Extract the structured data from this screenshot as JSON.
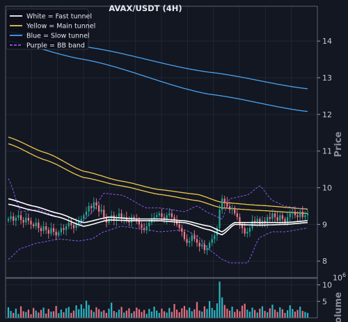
{
  "chart_data": {
    "type": "candlestick",
    "title": "AVAX/USDT (4H)",
    "price_panel": {
      "ylabel": "Price",
      "ylim": [
        7.55,
        14.95
      ],
      "yticks": [
        "8",
        "9",
        "10",
        "11",
        "12",
        "13",
        "14"
      ],
      "legend": [
        {
          "label": "White = Fast tunnel",
          "color": "#ffffff",
          "style": "solid"
        },
        {
          "label": "Yellow = Main tunnel",
          "color": "#f2c94c",
          "style": "solid"
        },
        {
          "label": "Blue = Slow tunnel",
          "color": "#4aa3f0",
          "style": "solid"
        },
        {
          "label": "Purple = BB band",
          "color": "#8a5cf0",
          "style": "dashed"
        }
      ],
      "legend_position": "top-left",
      "grid": true
    },
    "volume_panel": {
      "ylabel": "Volume",
      "exponent": "1e6",
      "ylim": [
        0,
        12
      ],
      "yticks": [
        "5",
        "10"
      ]
    },
    "num_candles": 120,
    "overlays": {
      "slow_tunnel_upper": {
        "x": [
          0,
          30,
          80,
          119
        ],
        "y": [
          14.25,
          13.85,
          13.15,
          12.7
        ]
      },
      "slow_tunnel_lower": {
        "x": [
          0,
          30,
          80,
          119
        ],
        "y": [
          14.0,
          13.5,
          12.55,
          12.08
        ]
      },
      "main_tunnel_upper": {
        "x": [
          0,
          15,
          30,
          45,
          60,
          75,
          85,
          100,
          119
        ],
        "y": [
          11.38,
          10.95,
          10.45,
          10.18,
          9.95,
          9.82,
          9.6,
          9.52,
          9.42
        ]
      },
      "main_tunnel_lower": {
        "x": [
          0,
          15,
          30,
          45,
          60,
          75,
          85,
          100,
          119
        ],
        "y": [
          11.2,
          10.75,
          10.28,
          10.05,
          9.82,
          9.65,
          9.45,
          9.38,
          9.3
        ]
      },
      "fast_tunnel_upper": {
        "x": [
          0,
          10,
          20,
          30,
          40,
          50,
          60,
          70,
          80,
          85,
          90,
          100,
          110,
          119
        ],
        "y": [
          9.7,
          9.5,
          9.3,
          9.05,
          9.2,
          9.15,
          9.15,
          9.1,
          8.95,
          8.8,
          9.05,
          9.05,
          9.05,
          9.1
        ]
      },
      "fast_tunnel_lower": {
        "x": [
          0,
          10,
          20,
          30,
          40,
          50,
          60,
          70,
          80,
          85,
          90,
          100,
          110,
          119
        ],
        "y": [
          9.55,
          9.38,
          9.2,
          8.95,
          9.12,
          9.1,
          9.1,
          9.05,
          8.85,
          8.72,
          9.0,
          8.98,
          9.0,
          9.05
        ]
      },
      "bb_upper": {
        "x": [
          0,
          5,
          12,
          20,
          28,
          33,
          38,
          45,
          55,
          60,
          70,
          75,
          80,
          85,
          88,
          95,
          100,
          105,
          110,
          119
        ],
        "y": [
          10.25,
          9.35,
          9.4,
          9.2,
          9.0,
          9.3,
          9.85,
          9.8,
          9.45,
          9.45,
          9.35,
          9.5,
          9.3,
          9.15,
          9.7,
          9.8,
          10.05,
          9.65,
          9.5,
          9.4
        ]
      },
      "bb_lower": {
        "x": [
          0,
          5,
          12,
          20,
          28,
          33,
          38,
          45,
          55,
          60,
          70,
          75,
          80,
          85,
          88,
          95,
          100,
          105,
          110,
          119
        ],
        "y": [
          8.05,
          8.35,
          8.5,
          8.6,
          8.55,
          8.6,
          8.8,
          8.95,
          8.85,
          8.8,
          8.85,
          8.7,
          8.3,
          8.05,
          7.95,
          7.95,
          8.65,
          8.8,
          8.8,
          8.9
        ]
      }
    },
    "candles": {
      "close": [
        9.15,
        9.22,
        9.1,
        9.18,
        9.25,
        9.12,
        9.05,
        9.18,
        9.1,
        9.0,
        8.95,
        9.05,
        8.9,
        8.82,
        8.95,
        8.85,
        8.75,
        8.9,
        8.8,
        8.7,
        8.78,
        8.9,
        8.85,
        8.95,
        9.05,
        8.98,
        8.9,
        9.02,
        9.1,
        9.15,
        9.25,
        9.35,
        9.5,
        9.45,
        9.6,
        9.52,
        9.35,
        9.4,
        9.2,
        9.05,
        9.15,
        9.25,
        9.1,
        9.2,
        9.3,
        9.15,
        9.2,
        9.1,
        9.05,
        9.2,
        9.15,
        9.1,
        9.0,
        8.9,
        8.85,
        8.95,
        9.05,
        9.15,
        9.2,
        9.25,
        9.3,
        9.2,
        9.15,
        9.25,
        9.3,
        9.2,
        9.1,
        9.0,
        8.9,
        8.8,
        8.6,
        8.5,
        8.55,
        8.7,
        8.6,
        8.5,
        8.4,
        8.45,
        8.3,
        8.35,
        8.5,
        8.6,
        8.7,
        8.9,
        9.4,
        9.7,
        9.6,
        9.5,
        9.4,
        9.45,
        9.3,
        9.2,
        9.0,
        8.9,
        8.75,
        8.8,
        8.9,
        9.1,
        9.05,
        9.15,
        9.0,
        9.1,
        9.05,
        9.2,
        9.15,
        9.3,
        9.2,
        9.1,
        9.25,
        9.15,
        9.05,
        9.2,
        9.3,
        9.35,
        9.25,
        9.2,
        9.35,
        9.2,
        9.25,
        9.3
      ],
      "volume": [
        3.2,
        2.1,
        1.5,
        2.8,
        1.2,
        3.5,
        2.0,
        1.8,
        2.5,
        1.1,
        3.0,
        2.2,
        1.6,
        2.4,
        3.1,
        1.3,
        2.7,
        1.9,
        2.0,
        3.6,
        1.4,
        2.5,
        1.7,
        2.9,
        3.3,
        1.5,
        2.2,
        3.8,
        2.6,
        4.1,
        2.8,
        5.2,
        3.9,
        2.4,
        1.8,
        3.2,
        2.6,
        1.9,
        2.3,
        1.5,
        2.8,
        4.6,
        2.1,
        1.7,
        2.5,
        3.3,
        1.6,
        2.2,
        2.9,
        1.4,
        2.0,
        3.1,
        2.6,
        1.8,
        2.4,
        1.2,
        2.7,
        1.9,
        3.4,
        2.2,
        1.5,
        2.8,
        2.0,
        1.6,
        3.0,
        1.8,
        4.2,
        2.5,
        1.7,
        2.9,
        3.6,
        2.4,
        3.1,
        2.0,
        2.6,
        4.8,
        2.2,
        1.9,
        3.5,
        2.7,
        5.1,
        3.0,
        2.3,
        4.4,
        11.0,
        6.2,
        3.9,
        2.8,
        2.2,
        3.4,
        1.8,
        2.6,
        2.0,
        3.7,
        4.3,
        2.5,
        1.9,
        3.1,
        2.4,
        1.6,
        2.8,
        3.5,
        2.1,
        1.7,
        2.9,
        4.0,
        2.5,
        1.8,
        3.2,
        2.6,
        1.5,
        2.3,
        3.8,
        2.7,
        1.9,
        2.4,
        3.4,
        2.1,
        1.8,
        1.5
      ]
    }
  }
}
